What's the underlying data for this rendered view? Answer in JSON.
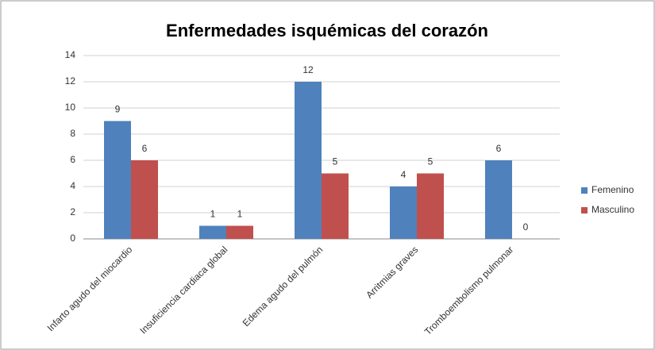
{
  "chart_data": {
    "type": "bar",
    "title": "Enfermedades isquémicas del corazón",
    "categories": [
      "Infarto agudo del miocardio",
      "Insuficiencia cardiaca global",
      "Edema agudo del pulmón",
      "Arritmias graves",
      "Tromboembolismo pulmonar"
    ],
    "series": [
      {
        "name": "Femenino",
        "color": "#4f81bd",
        "values": [
          9,
          1,
          12,
          4,
          6
        ]
      },
      {
        "name": "Masculino",
        "color": "#c0504d",
        "values": [
          6,
          1,
          5,
          5,
          0
        ]
      }
    ],
    "ylim": [
      0,
      14
    ],
    "yticks": [
      0,
      2,
      4,
      6,
      8,
      10,
      12,
      14
    ],
    "grid": true,
    "legend": "right"
  }
}
